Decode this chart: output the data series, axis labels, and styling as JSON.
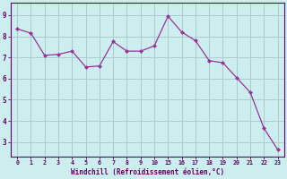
{
  "x_labels": [
    "0",
    "1",
    "2",
    "3",
    "4",
    "5",
    "6",
    "7",
    "8",
    "9",
    "10",
    "15",
    "16",
    "17",
    "18",
    "19",
    "20",
    "21",
    "22",
    "23"
  ],
  "y": [
    8.35,
    8.15,
    7.1,
    7.15,
    7.3,
    6.55,
    6.6,
    7.75,
    7.3,
    7.3,
    7.55,
    8.95,
    8.2,
    7.8,
    6.85,
    6.75,
    6.05,
    5.35,
    3.65,
    2.65
  ],
  "line_color": "#993399",
  "marker_color": "#993399",
  "bg_color": "#cceeee",
  "grid_color": "#aacccc",
  "xlabel": "Windchill (Refroidissement éolien,°C)",
  "yticks": [
    3,
    4,
    5,
    6,
    7,
    8,
    9
  ],
  "ylim": [
    2.3,
    9.6
  ],
  "axis_color": "#660066",
  "tick_color": "#660066"
}
